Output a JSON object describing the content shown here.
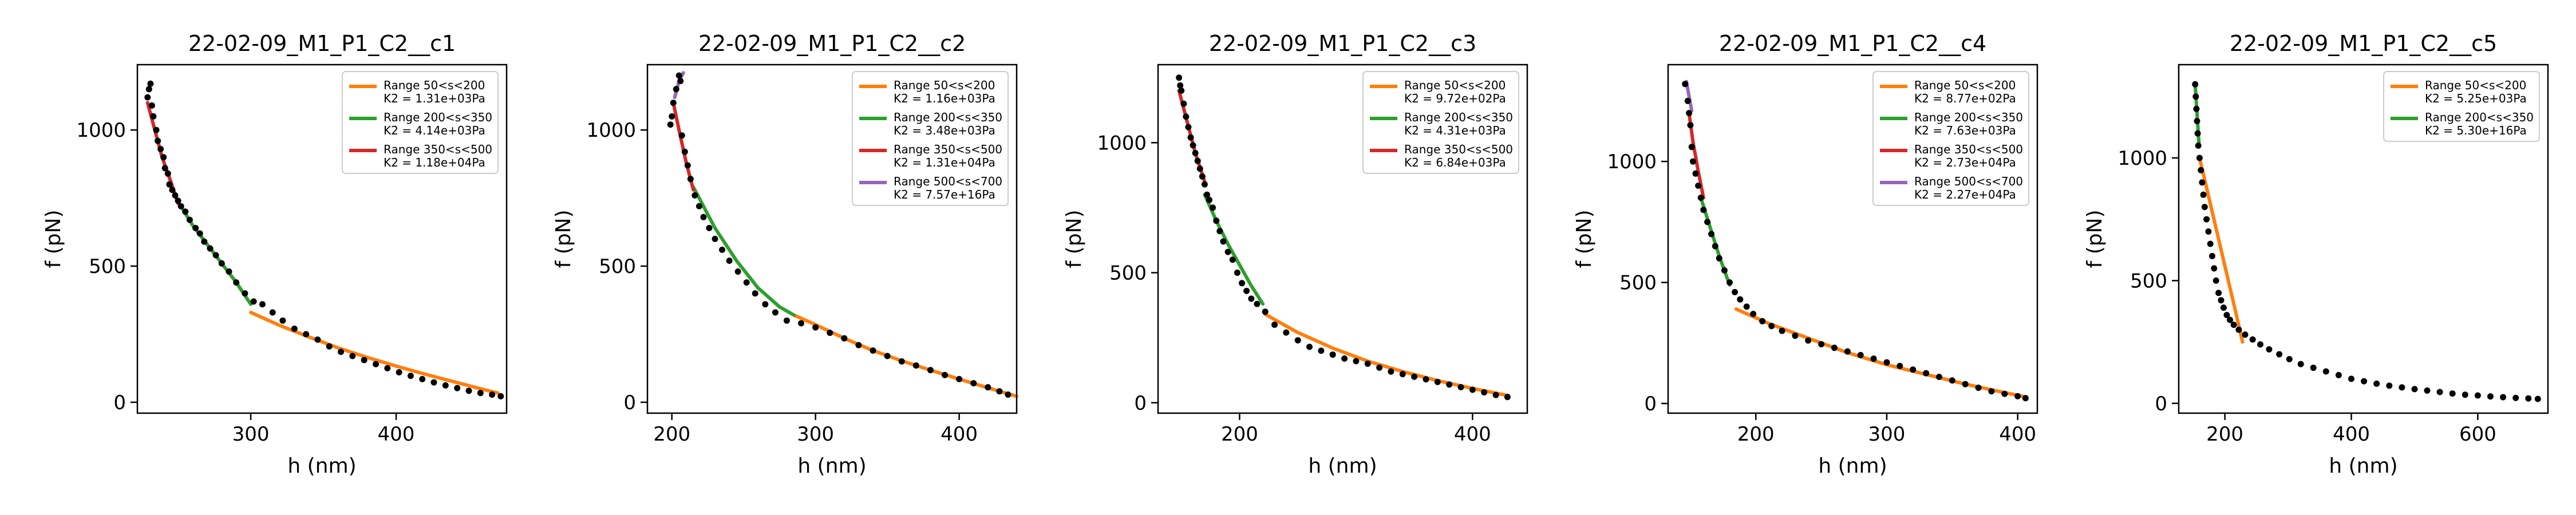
{
  "colors": {
    "data_points": "#000000",
    "series": [
      "#ff7f0e",
      "#2ca02c",
      "#d62728",
      "#9467bd"
    ]
  },
  "chart_data": [
    {
      "type": "scatter",
      "title": "22-02-09_M1_P1_C2__c1",
      "xlabel": "h (nm)",
      "ylabel": "f (pN)",
      "xlim": [
        222,
        476
      ],
      "ylim": [
        -40,
        1240
      ],
      "xticks": [
        300,
        400
      ],
      "yticks": [
        0,
        500,
        1000
      ],
      "legend_position": "top-right",
      "points": [
        [
          229,
          1120
        ],
        [
          230,
          1150
        ],
        [
          231,
          1170
        ],
        [
          232,
          1090
        ],
        [
          233,
          1050
        ],
        [
          235,
          1000
        ],
        [
          236,
          960
        ],
        [
          238,
          930
        ],
        [
          240,
          900
        ],
        [
          241,
          860
        ],
        [
          243,
          840
        ],
        [
          244,
          800
        ],
        [
          246,
          780
        ],
        [
          248,
          760
        ],
        [
          250,
          740
        ],
        [
          252,
          720
        ],
        [
          255,
          700
        ],
        [
          258,
          670
        ],
        [
          262,
          640
        ],
        [
          265,
          620
        ],
        [
          268,
          590
        ],
        [
          272,
          565
        ],
        [
          276,
          540
        ],
        [
          280,
          510
        ],
        [
          285,
          480
        ],
        [
          290,
          440
        ],
        [
          296,
          400
        ],
        [
          302,
          370
        ],
        [
          308,
          360
        ],
        [
          315,
          330
        ],
        [
          322,
          300
        ],
        [
          330,
          270
        ],
        [
          338,
          250
        ],
        [
          346,
          230
        ],
        [
          354,
          205
        ],
        [
          362,
          185
        ],
        [
          370,
          170
        ],
        [
          378,
          155
        ],
        [
          386,
          140
        ],
        [
          394,
          125
        ],
        [
          402,
          110
        ],
        [
          410,
          97
        ],
        [
          418,
          85
        ],
        [
          426,
          73
        ],
        [
          434,
          62
        ],
        [
          442,
          52
        ],
        [
          450,
          42
        ],
        [
          458,
          34
        ],
        [
          466,
          28
        ],
        [
          472,
          22
        ]
      ],
      "series": [
        {
          "name": "Range 50<s<200",
          "annotation": "K2 = 1.31e+03Pa",
          "x": [
            300,
            320,
            340,
            360,
            380,
            400,
            420,
            440,
            460,
            470
          ],
          "y": [
            330,
            282,
            240,
            200,
            165,
            133,
            103,
            75,
            47,
            34
          ]
        },
        {
          "name": "Range 200<s<350",
          "annotation": "K2 = 4.14e+03Pa",
          "x": [
            252,
            260,
            270,
            280,
            290,
            300
          ],
          "y": [
            720,
            650,
            580,
            510,
            440,
            360
          ]
        },
        {
          "name": "Range 350<s<500",
          "annotation": "K2 = 1.18e+04Pa",
          "x": [
            229,
            234,
            239,
            245,
            250
          ],
          "y": [
            1100,
            1000,
            900,
            810,
            730
          ]
        }
      ]
    },
    {
      "type": "scatter",
      "title": "22-02-09_M1_P1_C2__c2",
      "xlabel": "h (nm)",
      "ylabel": "f (pN)",
      "xlim": [
        183,
        440
      ],
      "ylim": [
        -40,
        1240
      ],
      "xticks": [
        200,
        300,
        400
      ],
      "yticks": [
        0,
        500,
        1000
      ],
      "legend_position": "top-right",
      "points": [
        [
          199,
          1020
        ],
        [
          200,
          1050
        ],
        [
          201,
          1100
        ],
        [
          203,
          1150
        ],
        [
          205,
          1200
        ],
        [
          206,
          1180
        ],
        [
          207,
          980
        ],
        [
          209,
          920
        ],
        [
          211,
          870
        ],
        [
          213,
          820
        ],
        [
          216,
          760
        ],
        [
          219,
          720
        ],
        [
          222,
          680
        ],
        [
          226,
          640
        ],
        [
          230,
          600
        ],
        [
          235,
          560
        ],
        [
          240,
          520
        ],
        [
          246,
          480
        ],
        [
          252,
          440
        ],
        [
          258,
          400
        ],
        [
          265,
          360
        ],
        [
          272,
          330
        ],
        [
          280,
          300
        ],
        [
          290,
          290
        ],
        [
          300,
          275
        ],
        [
          310,
          255
        ],
        [
          320,
          235
        ],
        [
          330,
          210
        ],
        [
          340,
          190
        ],
        [
          350,
          170
        ],
        [
          360,
          150
        ],
        [
          370,
          135
        ],
        [
          380,
          118
        ],
        [
          390,
          100
        ],
        [
          400,
          85
        ],
        [
          410,
          70
        ],
        [
          420,
          55
        ],
        [
          428,
          40
        ],
        [
          434,
          28
        ]
      ],
      "series": [
        {
          "name": "Range 50<s<200",
          "annotation": "K2 = 1.16e+03Pa",
          "x": [
            285,
            300,
            320,
            340,
            360,
            380,
            400,
            420,
            440
          ],
          "y": [
            320,
            285,
            235,
            190,
            152,
            118,
            85,
            53,
            22
          ]
        },
        {
          "name": "Range 200<s<350",
          "annotation": "K2 = 3.48e+03Pa",
          "x": [
            215,
            230,
            245,
            260,
            275,
            285
          ],
          "y": [
            790,
            640,
            520,
            420,
            350,
            320
          ]
        },
        {
          "name": "Range 350<s<500",
          "annotation": "K2 = 1.31e+04Pa",
          "x": [
            201,
            205,
            210,
            215
          ],
          "y": [
            1100,
            1000,
            880,
            780
          ]
        },
        {
          "name": "Range 500<s<700",
          "annotation": "K2 = 7.57e+16Pa",
          "x": [
            202,
            205,
            208
          ],
          "y": [
            1120,
            1180,
            1210
          ]
        }
      ]
    },
    {
      "type": "scatter",
      "title": "22-02-09_M1_P1_C2__c3",
      "xlabel": "h (nm)",
      "ylabel": "f (pN)",
      "xlim": [
        130,
        447
      ],
      "ylim": [
        -40,
        1300
      ],
      "xticks": [
        200,
        400
      ],
      "yticks": [
        0,
        500,
        1000
      ],
      "legend_position": "top-right",
      "points": [
        [
          148,
          1250
        ],
        [
          149,
          1220
        ],
        [
          150,
          1200
        ],
        [
          152,
          1150
        ],
        [
          154,
          1100
        ],
        [
          156,
          1060
        ],
        [
          158,
          1020
        ],
        [
          160,
          990
        ],
        [
          162,
          960
        ],
        [
          164,
          930
        ],
        [
          166,
          900
        ],
        [
          168,
          870
        ],
        [
          170,
          840
        ],
        [
          172,
          800
        ],
        [
          174,
          780
        ],
        [
          177,
          750
        ],
        [
          180,
          700
        ],
        [
          183,
          660
        ],
        [
          186,
          620
        ],
        [
          190,
          580
        ],
        [
          194,
          550
        ],
        [
          198,
          500
        ],
        [
          202,
          460
        ],
        [
          206,
          430
        ],
        [
          210,
          400
        ],
        [
          215,
          380
        ],
        [
          222,
          350
        ],
        [
          230,
          300
        ],
        [
          240,
          270
        ],
        [
          250,
          240
        ],
        [
          260,
          215
        ],
        [
          270,
          200
        ],
        [
          280,
          185
        ],
        [
          290,
          170
        ],
        [
          300,
          160
        ],
        [
          310,
          150
        ],
        [
          320,
          135
        ],
        [
          330,
          120
        ],
        [
          340,
          110
        ],
        [
          350,
          100
        ],
        [
          360,
          90
        ],
        [
          370,
          80
        ],
        [
          380,
          70
        ],
        [
          390,
          60
        ],
        [
          400,
          50
        ],
        [
          410,
          40
        ],
        [
          420,
          30
        ],
        [
          430,
          22
        ]
      ],
      "series": [
        {
          "name": "Range 50<s<200",
          "annotation": "K2 = 9.72e+02Pa",
          "x": [
            222,
            250,
            280,
            310,
            340,
            370,
            400,
            430
          ],
          "y": [
            340,
            270,
            210,
            160,
            120,
            85,
            55,
            28
          ]
        },
        {
          "name": "Range 200<s<350",
          "annotation": "K2 = 4.31e+03Pa",
          "x": [
            170,
            180,
            190,
            200,
            210,
            220
          ],
          "y": [
            800,
            700,
            610,
            530,
            450,
            380
          ]
        },
        {
          "name": "Range 350<s<500",
          "annotation": "K2 = 6.84e+03Pa",
          "x": [
            148,
            155,
            162,
            170
          ],
          "y": [
            1200,
            1080,
            960,
            850
          ]
        }
      ]
    },
    {
      "type": "scatter",
      "title": "22-02-09_M1_P1_C2__c4",
      "xlabel": "h (nm)",
      "ylabel": "f (pN)",
      "xlim": [
        133,
        415
      ],
      "ylim": [
        -40,
        1400
      ],
      "xticks": [
        200,
        300,
        400
      ],
      "yticks": [
        0,
        500,
        1000
      ],
      "legend_position": "top-right",
      "points": [
        [
          146,
          1320
        ],
        [
          148,
          1250
        ],
        [
          149,
          1200
        ],
        [
          150,
          1150
        ],
        [
          151,
          1060
        ],
        [
          152,
          1000
        ],
        [
          154,
          950
        ],
        [
          156,
          900
        ],
        [
          158,
          850
        ],
        [
          160,
          800
        ],
        [
          163,
          750
        ],
        [
          166,
          700
        ],
        [
          169,
          650
        ],
        [
          172,
          600
        ],
        [
          176,
          550
        ],
        [
          180,
          500
        ],
        [
          184,
          460
        ],
        [
          188,
          430
        ],
        [
          193,
          400
        ],
        [
          198,
          370
        ],
        [
          205,
          340
        ],
        [
          212,
          320
        ],
        [
          220,
          300
        ],
        [
          230,
          280
        ],
        [
          240,
          260
        ],
        [
          250,
          245
        ],
        [
          260,
          230
        ],
        [
          270,
          215
        ],
        [
          280,
          200
        ],
        [
          290,
          185
        ],
        [
          300,
          170
        ],
        [
          310,
          155
        ],
        [
          320,
          140
        ],
        [
          330,
          125
        ],
        [
          340,
          110
        ],
        [
          350,
          95
        ],
        [
          360,
          80
        ],
        [
          370,
          65
        ],
        [
          380,
          50
        ],
        [
          390,
          40
        ],
        [
          400,
          30
        ],
        [
          406,
          22
        ]
      ],
      "series": [
        {
          "name": "Range 50<s<200",
          "annotation": "K2 = 8.77e+02Pa",
          "x": [
            185,
            210,
            240,
            270,
            300,
            330,
            360,
            390,
            405
          ],
          "y": [
            390,
            330,
            270,
            210,
            160,
            120,
            80,
            45,
            28
          ]
        },
        {
          "name": "Range 200<s<350",
          "annotation": "K2 = 7.63e+03Pa",
          "x": [
            158,
            165,
            172,
            180
          ],
          "y": [
            850,
            730,
            610,
            490
          ]
        },
        {
          "name": "Range 350<s<500",
          "annotation": "K2 = 2.73e+04Pa",
          "x": [
            149,
            152,
            156,
            160
          ],
          "y": [
            1200,
            1080,
            960,
            850
          ]
        },
        {
          "name": "Range 500<s<700",
          "annotation": "K2 = 2.27e+04Pa",
          "x": [
            147,
            149,
            151
          ],
          "y": [
            1330,
            1270,
            1210
          ]
        }
      ]
    },
    {
      "type": "scatter",
      "title": "22-02-09_M1_P1_C2__c5",
      "xlabel": "h (nm)",
      "ylabel": "f (pN)",
      "xlim": [
        127,
        711
      ],
      "ylim": [
        -40,
        1380
      ],
      "xticks": [
        200,
        400,
        600
      ],
      "yticks": [
        0,
        500,
        1000
      ],
      "legend_position": "top-right",
      "points": [
        [
          153,
          1300
        ],
        [
          154,
          1250
        ],
        [
          155,
          1200
        ],
        [
          156,
          1150
        ],
        [
          157,
          1100
        ],
        [
          158,
          1050
        ],
        [
          160,
          1000
        ],
        [
          162,
          950
        ],
        [
          164,
          900
        ],
        [
          166,
          850
        ],
        [
          168,
          800
        ],
        [
          171,
          750
        ],
        [
          174,
          700
        ],
        [
          177,
          650
        ],
        [
          180,
          600
        ],
        [
          183,
          550
        ],
        [
          186,
          500
        ],
        [
          190,
          450
        ],
        [
          194,
          420
        ],
        [
          198,
          390
        ],
        [
          203,
          360
        ],
        [
          208,
          340
        ],
        [
          214,
          320
        ],
        [
          222,
          300
        ],
        [
          232,
          280
        ],
        [
          244,
          260
        ],
        [
          256,
          240
        ],
        [
          270,
          220
        ],
        [
          286,
          200
        ],
        [
          302,
          180
        ],
        [
          320,
          160
        ],
        [
          340,
          145
        ],
        [
          360,
          130
        ],
        [
          380,
          115
        ],
        [
          400,
          100
        ],
        [
          420,
          90
        ],
        [
          440,
          80
        ],
        [
          460,
          72
        ],
        [
          480,
          65
        ],
        [
          500,
          58
        ],
        [
          520,
          52
        ],
        [
          540,
          46
        ],
        [
          560,
          40
        ],
        [
          580,
          35
        ],
        [
          600,
          32
        ],
        [
          620,
          28
        ],
        [
          640,
          25
        ],
        [
          660,
          22
        ],
        [
          680,
          20
        ],
        [
          695,
          18
        ]
      ],
      "series": [
        {
          "name": "Range 50<s<200",
          "annotation": "K2 = 5.25e+03Pa",
          "x": [
            160,
            170,
            180,
            190,
            200,
            210,
            220,
            228
          ],
          "y": [
            1000,
            890,
            780,
            670,
            560,
            450,
            340,
            250
          ]
        },
        {
          "name": "Range 200<s<350",
          "annotation": "K2 = 5.30e+16Pa",
          "x": [
            153,
            155,
            157,
            159
          ],
          "y": [
            1300,
            1220,
            1140,
            1060
          ]
        }
      ]
    }
  ]
}
